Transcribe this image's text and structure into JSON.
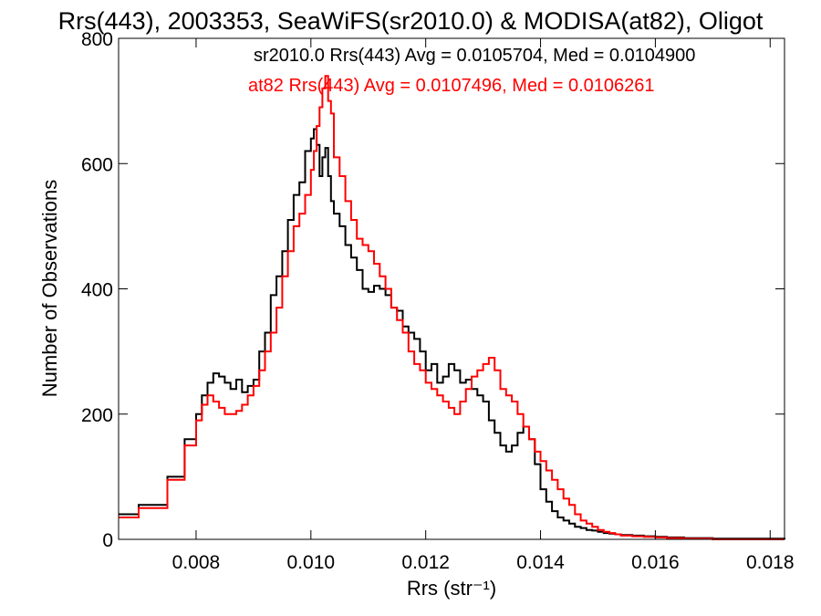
{
  "chart_data": {
    "type": "line",
    "title": "Rrs(443), 2003353, SeaWiFS(sr2010.0) & MODISA(at82), Oligot",
    "xlabel": "Rrs (str⁻¹)",
    "ylabel": "Number of Observations",
    "xlim": [
      0.00665,
      0.01825
    ],
    "ylim": [
      0,
      800
    ],
    "xticks": [
      "0.008",
      "0.010",
      "0.012",
      "0.014",
      "0.016",
      "0.018"
    ],
    "xtick_values": [
      0.008,
      0.01,
      0.012,
      0.014,
      0.016,
      0.018
    ],
    "yticks": [
      "0",
      "200",
      "400",
      "600",
      "800"
    ],
    "ytick_values": [
      0,
      200,
      400,
      600,
      800
    ],
    "grid": false,
    "annotations": [
      {
        "text": "sr2010.0 Rrs(443) Avg = 0.0105704, Med = 0.0104900",
        "color": "#000000"
      },
      {
        "text": "at82 Rrs(443) Avg = 0.0107496, Med = 0.0106261",
        "color": "#ff0000"
      }
    ],
    "series": [
      {
        "color": "#000000",
        "x": [
          0.00665,
          0.007,
          0.0075,
          0.0078,
          0.008,
          0.0081,
          0.0082,
          0.0083,
          0.0084,
          0.0085,
          0.0086,
          0.0087,
          0.0088,
          0.0089,
          0.009,
          0.0091,
          0.0092,
          0.0093,
          0.0094,
          0.0095,
          0.0096,
          0.0097,
          0.0098,
          0.0099,
          0.01,
          0.01005,
          0.0101,
          0.01015,
          0.0102,
          0.01025,
          0.0103,
          0.01035,
          0.0104,
          0.0105,
          0.0106,
          0.0107,
          0.0108,
          0.0109,
          0.011,
          0.0111,
          0.0112,
          0.0113,
          0.0114,
          0.0115,
          0.0116,
          0.0117,
          0.0118,
          0.0119,
          0.012,
          0.0121,
          0.0122,
          0.0123,
          0.0124,
          0.0125,
          0.0126,
          0.0127,
          0.0128,
          0.0129,
          0.013,
          0.0131,
          0.0132,
          0.0133,
          0.0134,
          0.0135,
          0.0136,
          0.0137,
          0.0138,
          0.0139,
          0.014,
          0.0141,
          0.0142,
          0.0143,
          0.0144,
          0.0145,
          0.0146,
          0.0147,
          0.0148,
          0.0149,
          0.015,
          0.0151,
          0.0152,
          0.0153,
          0.0154,
          0.0156,
          0.0158,
          0.016,
          0.0162,
          0.0165,
          0.017,
          0.01825
        ],
        "y": [
          40,
          55,
          100,
          160,
          200,
          230,
          250,
          265,
          260,
          250,
          240,
          255,
          235,
          245,
          255,
          300,
          330,
          390,
          420,
          460,
          510,
          550,
          570,
          620,
          640,
          655,
          630,
          580,
          610,
          625,
          580,
          540,
          520,
          500,
          470,
          450,
          430,
          400,
          395,
          405,
          400,
          390,
          370,
          365,
          340,
          330,
          320,
          300,
          270,
          280,
          250,
          260,
          280,
          270,
          250,
          255,
          240,
          230,
          220,
          190,
          170,
          150,
          140,
          150,
          170,
          180,
          160,
          120,
          80,
          60,
          45,
          35,
          30,
          25,
          20,
          18,
          15,
          14,
          12,
          10,
          9,
          8,
          7,
          6,
          5,
          4,
          3,
          2,
          1,
          0
        ]
      },
      {
        "color": "#ff0000",
        "x": [
          0.00665,
          0.007,
          0.0075,
          0.0078,
          0.008,
          0.0081,
          0.0082,
          0.0083,
          0.0084,
          0.0085,
          0.0086,
          0.0087,
          0.0088,
          0.0089,
          0.009,
          0.0091,
          0.0092,
          0.0093,
          0.0094,
          0.0095,
          0.0096,
          0.0097,
          0.0098,
          0.0099,
          0.01,
          0.01005,
          0.0101,
          0.01015,
          0.0102,
          0.01025,
          0.0103,
          0.01035,
          0.0104,
          0.0105,
          0.0106,
          0.0107,
          0.0108,
          0.0109,
          0.011,
          0.0111,
          0.0112,
          0.0113,
          0.0114,
          0.0115,
          0.0116,
          0.0117,
          0.0118,
          0.0119,
          0.012,
          0.0121,
          0.0122,
          0.0123,
          0.0124,
          0.0125,
          0.0126,
          0.0127,
          0.0128,
          0.0129,
          0.013,
          0.0131,
          0.0132,
          0.0133,
          0.0134,
          0.0135,
          0.0136,
          0.0137,
          0.0138,
          0.0139,
          0.014,
          0.0141,
          0.0142,
          0.0143,
          0.0144,
          0.0145,
          0.0146,
          0.0147,
          0.0148,
          0.0149,
          0.015,
          0.0151,
          0.0152,
          0.0153,
          0.0154,
          0.0156,
          0.0158,
          0.016,
          0.0162,
          0.0165,
          0.017,
          0.01825
        ],
        "y": [
          35,
          50,
          95,
          150,
          190,
          215,
          230,
          220,
          210,
          200,
          200,
          205,
          215,
          230,
          245,
          270,
          300,
          330,
          370,
          420,
          460,
          500,
          520,
          550,
          590,
          620,
          660,
          690,
          720,
          740,
          700,
          680,
          610,
          580,
          540,
          510,
          480,
          470,
          460,
          440,
          420,
          400,
          370,
          350,
          330,
          300,
          280,
          270,
          250,
          240,
          230,
          220,
          210,
          200,
          220,
          240,
          260,
          270,
          280,
          290,
          270,
          240,
          230,
          220,
          200,
          180,
          160,
          140,
          125,
          110,
          95,
          80,
          65,
          55,
          40,
          30,
          25,
          20,
          15,
          12,
          10,
          8,
          6,
          5,
          4,
          3,
          2,
          1,
          0,
          0
        ]
      }
    ]
  }
}
